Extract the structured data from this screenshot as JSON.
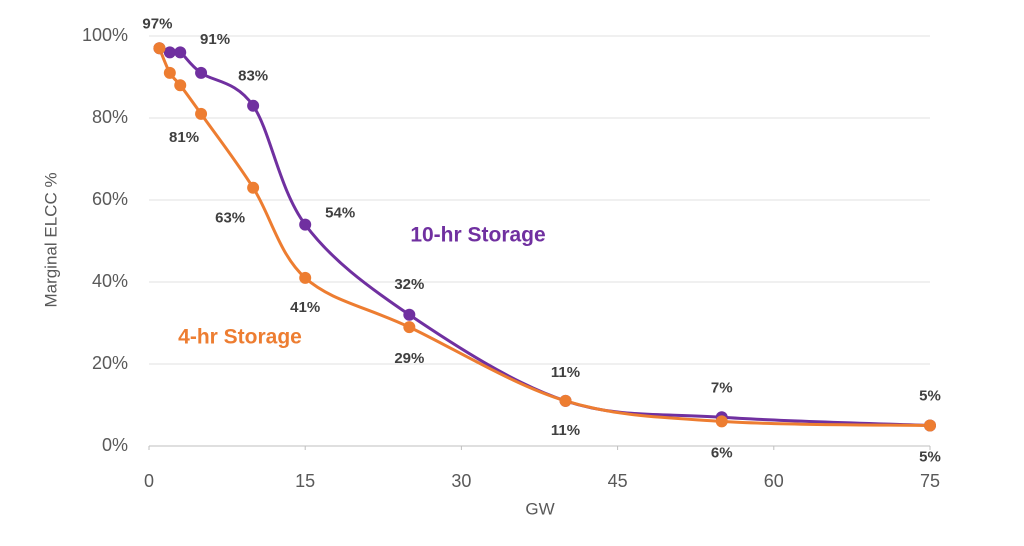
{
  "chart_data": {
    "type": "line",
    "x_label": "GW",
    "y_label": "Marginal ELCC %",
    "x": [
      1,
      2,
      3,
      5,
      10,
      15,
      25,
      40,
      55,
      75
    ],
    "xlim": [
      0,
      75
    ],
    "xticks": [
      0,
      15,
      30,
      45,
      60,
      75
    ],
    "ylim": [
      0,
      100
    ],
    "yticks": [
      {
        "value": 0,
        "label": "0%"
      },
      {
        "value": 20,
        "label": "20%"
      },
      {
        "value": 40,
        "label": "40%"
      },
      {
        "value": 60,
        "label": "60%"
      },
      {
        "value": 80,
        "label": "80%"
      },
      {
        "value": 100,
        "label": "100%"
      }
    ],
    "grid": true,
    "smooth": true,
    "series": [
      {
        "name": "10-hr Storage",
        "color": "#7030a0",
        "values": [
          97,
          96,
          96,
          91,
          83,
          54,
          32,
          11,
          7,
          5
        ],
        "value_labels": [
          "97%",
          null,
          null,
          "91%",
          "83%",
          "54%",
          "32%",
          "11%",
          "7%",
          "5%"
        ]
      },
      {
        "name": "4-hr Storage",
        "color": "#ed7d31",
        "values": [
          97,
          91,
          88,
          81,
          63,
          41,
          29,
          11,
          6,
          5
        ],
        "value_labels": [
          null,
          null,
          null,
          "81%",
          "63%",
          "41%",
          "29%",
          "11%",
          "6%",
          "5%"
        ]
      }
    ]
  }
}
